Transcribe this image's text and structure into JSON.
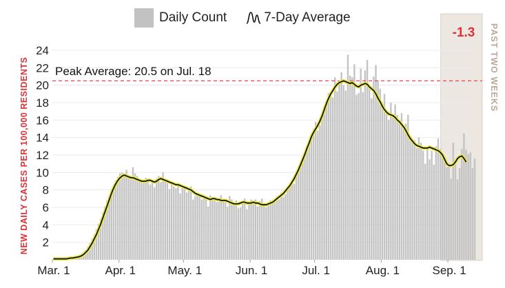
{
  "legend": {
    "daily_label": "Daily Count",
    "average_label": "7-Day Average"
  },
  "colors": {
    "bar": "#c4c4c4",
    "line": "#111111",
    "line_halo": "#e8e84a",
    "peak_line": "#e8303a",
    "axis_title": "#e03036",
    "shade": "#ece7e1",
    "shade_text": "#b9a995",
    "change": "#e03036",
    "grid": "#ebebeb"
  },
  "chart_data": {
    "type": "bar",
    "ylabel": "NEW DAILY CASES PER 100,000 RESIDENTS",
    "ylim": [
      0,
      24
    ],
    "yticks": [
      2,
      4,
      6,
      8,
      10,
      12,
      14,
      16,
      18,
      20,
      22,
      24
    ],
    "x_start": "Mar. 1",
    "xtick_labels": [
      {
        "label": "Mar. 1",
        "day": 0
      },
      {
        "label": "Apr. 1",
        "day": 31
      },
      {
        "label": "May. 1",
        "day": 61
      },
      {
        "label": "Jun. 1",
        "day": 92
      },
      {
        "label": "Jul. 1",
        "day": 122
      },
      {
        "label": "Aug. 1",
        "day": 153
      },
      {
        "label": "Sep. 1",
        "day": 184
      }
    ],
    "peak": {
      "label": "Peak Average: 20.5 on Jul. 18",
      "value": 20.5
    },
    "shaded_region": {
      "label": "PAST TWO WEEKS",
      "change_label": "-1.3",
      "start_day": 181
    },
    "series": [
      {
        "name": "Daily Count",
        "values": [
          0.1,
          0.1,
          0.1,
          0.1,
          0.1,
          0.1,
          0.2,
          0.2,
          0.2,
          0.3,
          0.3,
          0.4,
          0.4,
          0.6,
          0.8,
          1.1,
          1.5,
          1.9,
          2.4,
          2.9,
          3.5,
          4.1,
          4.7,
          5.4,
          6.1,
          6.8,
          7.4,
          8.1,
          8.6,
          9.1,
          9.5,
          9.9,
          10.0,
          9.6,
          10.3,
          9.4,
          9.2,
          10.6,
          9.9,
          9.6,
          9.3,
          8.8,
          8.9,
          9.4,
          9.1,
          8.6,
          9.0,
          8.3,
          9.3,
          9.6,
          8.9,
          10.0,
          9.1,
          8.8,
          8.1,
          8.7,
          8.4,
          8.2,
          8.8,
          7.6,
          8.3,
          8.3,
          7.7,
          7.9,
          8.4,
          6.9,
          7.3,
          7.5,
          7.6,
          6.9,
          7.4,
          7.3,
          6.1,
          7.4,
          7.1,
          6.8,
          6.6,
          6.9,
          7.4,
          7.0,
          6.9,
          6.1,
          7.3,
          6.9,
          6.5,
          6.8,
          5.9,
          6.0,
          6.4,
          7.0,
          5.8,
          6.4,
          6.9,
          6.6,
          6.9,
          6.1,
          6.7,
          7.0,
          6.4,
          6.0,
          6.3,
          6.8,
          6.5,
          7.0,
          7.3,
          6.9,
          7.7,
          7.2,
          7.5,
          8.0,
          8.3,
          8.8,
          8.7,
          9.7,
          10.3,
          11.3,
          11.6,
          11.9,
          12.6,
          13.4,
          14.5,
          15.0,
          15.8,
          14.8,
          15.4,
          16.4,
          17.5,
          18.0,
          19.1,
          18.8,
          18.6,
          20.9,
          19.3,
          20.3,
          21.5,
          20.0,
          19.4,
          23.5,
          21.1,
          20.9,
          22.4,
          18.9,
          19.1,
          21.9,
          19.2,
          21.7,
          22.9,
          19.8,
          18.5,
          21.0,
          22.3,
          20.5,
          19.6,
          17.4,
          19.0,
          17.1,
          16.0,
          18.0,
          16.4,
          17.8,
          16.6,
          15.8,
          16.8,
          15.1,
          15.6,
          16.6,
          14.0,
          13.6,
          13.7,
          12.8,
          14.0,
          13.4,
          12.5,
          11.0,
          12.8,
          11.5,
          12.5,
          10.9,
          13.0,
          13.9,
          12.7,
          12.1,
          11.5,
          10.6,
          10.8,
          9.3,
          13.4,
          11.2,
          9.2,
          10.5,
          12.7,
          14.5,
          12.6,
          12.1,
          12.3,
          10.5,
          11.6
        ]
      },
      {
        "name": "7-Day Average",
        "values": [
          0.1,
          0.1,
          0.1,
          0.1,
          0.1,
          0.1,
          0.1,
          0.15,
          0.2,
          0.2,
          0.25,
          0.3,
          0.35,
          0.45,
          0.6,
          0.85,
          1.1,
          1.5,
          1.9,
          2.4,
          2.9,
          3.5,
          4.1,
          4.8,
          5.5,
          6.2,
          6.9,
          7.6,
          8.2,
          8.7,
          9.1,
          9.4,
          9.6,
          9.7,
          9.6,
          9.5,
          9.4,
          9.4,
          9.3,
          9.2,
          9.1,
          9.0,
          9.0,
          9.0,
          9.1,
          9.1,
          9.0,
          8.9,
          9.0,
          9.2,
          9.3,
          9.2,
          9.1,
          9.0,
          8.9,
          8.8,
          8.7,
          8.6,
          8.6,
          8.5,
          8.4,
          8.3,
          8.2,
          8.1,
          8.0,
          7.8,
          7.6,
          7.5,
          7.4,
          7.3,
          7.2,
          7.1,
          7.0,
          6.9,
          7.0,
          7.0,
          6.9,
          6.9,
          6.8,
          6.8,
          6.8,
          6.7,
          6.6,
          6.5,
          6.4,
          6.4,
          6.4,
          6.5,
          6.6,
          6.6,
          6.5,
          6.5,
          6.5,
          6.6,
          6.5,
          6.5,
          6.4,
          6.3,
          6.3,
          6.3,
          6.4,
          6.5,
          6.6,
          6.8,
          7.0,
          7.2,
          7.4,
          7.6,
          7.9,
          8.2,
          8.5,
          8.9,
          9.3,
          9.8,
          10.3,
          10.9,
          11.5,
          12.1,
          12.8,
          13.4,
          14.1,
          14.6,
          15.0,
          15.4,
          15.9,
          16.5,
          17.2,
          17.9,
          18.5,
          19.0,
          19.4,
          19.8,
          20.1,
          20.3,
          20.4,
          20.5,
          20.4,
          20.3,
          20.2,
          20.3,
          20.1,
          19.9,
          19.8,
          20.0,
          20.1,
          20.2,
          20.1,
          19.8,
          19.6,
          19.4,
          19.0,
          18.5,
          18.1,
          17.6,
          17.2,
          16.9,
          16.7,
          16.6,
          16.5,
          16.3,
          16.0,
          15.8,
          15.5,
          15.2,
          14.8,
          14.3,
          13.9,
          13.6,
          13.3,
          13.1,
          13.0,
          12.9,
          12.8,
          12.8,
          12.8,
          12.9,
          12.8,
          12.7,
          12.6,
          12.5,
          12.3,
          12.0,
          11.5,
          11.0,
          10.8,
          10.8,
          10.9,
          11.2,
          11.6,
          11.8,
          11.9,
          11.6,
          11.2
        ]
      }
    ]
  }
}
